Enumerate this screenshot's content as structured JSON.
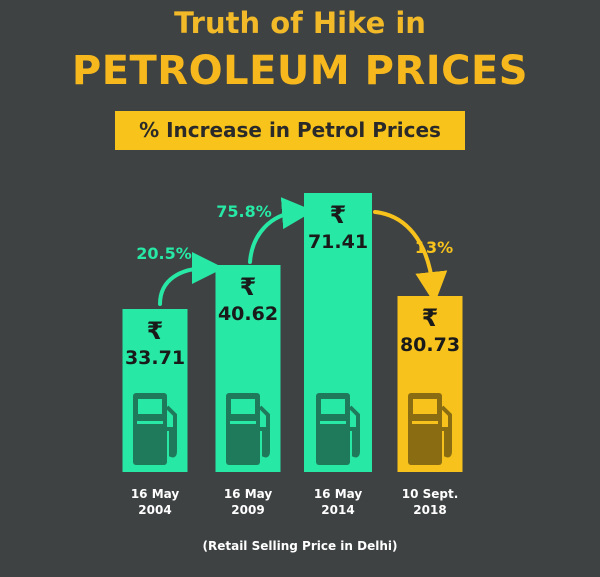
{
  "header": {
    "title_line1": "Truth of Hike in",
    "title_line2": "PETROLEUM PRICES",
    "subtitle": "% Increase in Petrol Prices"
  },
  "footnote": "(Retail Selling Price in Delhi)",
  "colors": {
    "background": "#3e4243",
    "accent_yellow": "#f8c31a",
    "bar_teal": "#27e8a5",
    "bar_yellow": "#f7c21c"
  },
  "chart_data": {
    "type": "bar",
    "title": "% Increase in Petrol Prices",
    "categories": [
      "16 May\n2004",
      "16 May\n2009",
      "16 May\n2014",
      "10 Sept.\n2018"
    ],
    "category_lines": [
      [
        "16 May",
        "2004"
      ],
      [
        "16 May",
        "2009"
      ],
      [
        "16 May",
        "2014"
      ],
      [
        "10 Sept.",
        "2018"
      ]
    ],
    "currency_symbol": "₹",
    "values": [
      33.71,
      40.62,
      71.41,
      80.73
    ],
    "value_labels": [
      "33.71",
      "40.62",
      "71.41",
      "80.73"
    ],
    "increases": [
      {
        "from": 0,
        "to": 1,
        "label": "20.5%",
        "color": "#27e8a5"
      },
      {
        "from": 1,
        "to": 2,
        "label": "75.8%",
        "color": "#27e8a5"
      },
      {
        "from": 2,
        "to": 3,
        "label": "13%",
        "color": "#f7c21c"
      }
    ],
    "icons": [
      "fuel-pump-icon",
      "fuel-pump-icon",
      "fuel-pump-icon",
      "fuel-pump-icon"
    ],
    "xlabel": "",
    "ylabel": ""
  }
}
